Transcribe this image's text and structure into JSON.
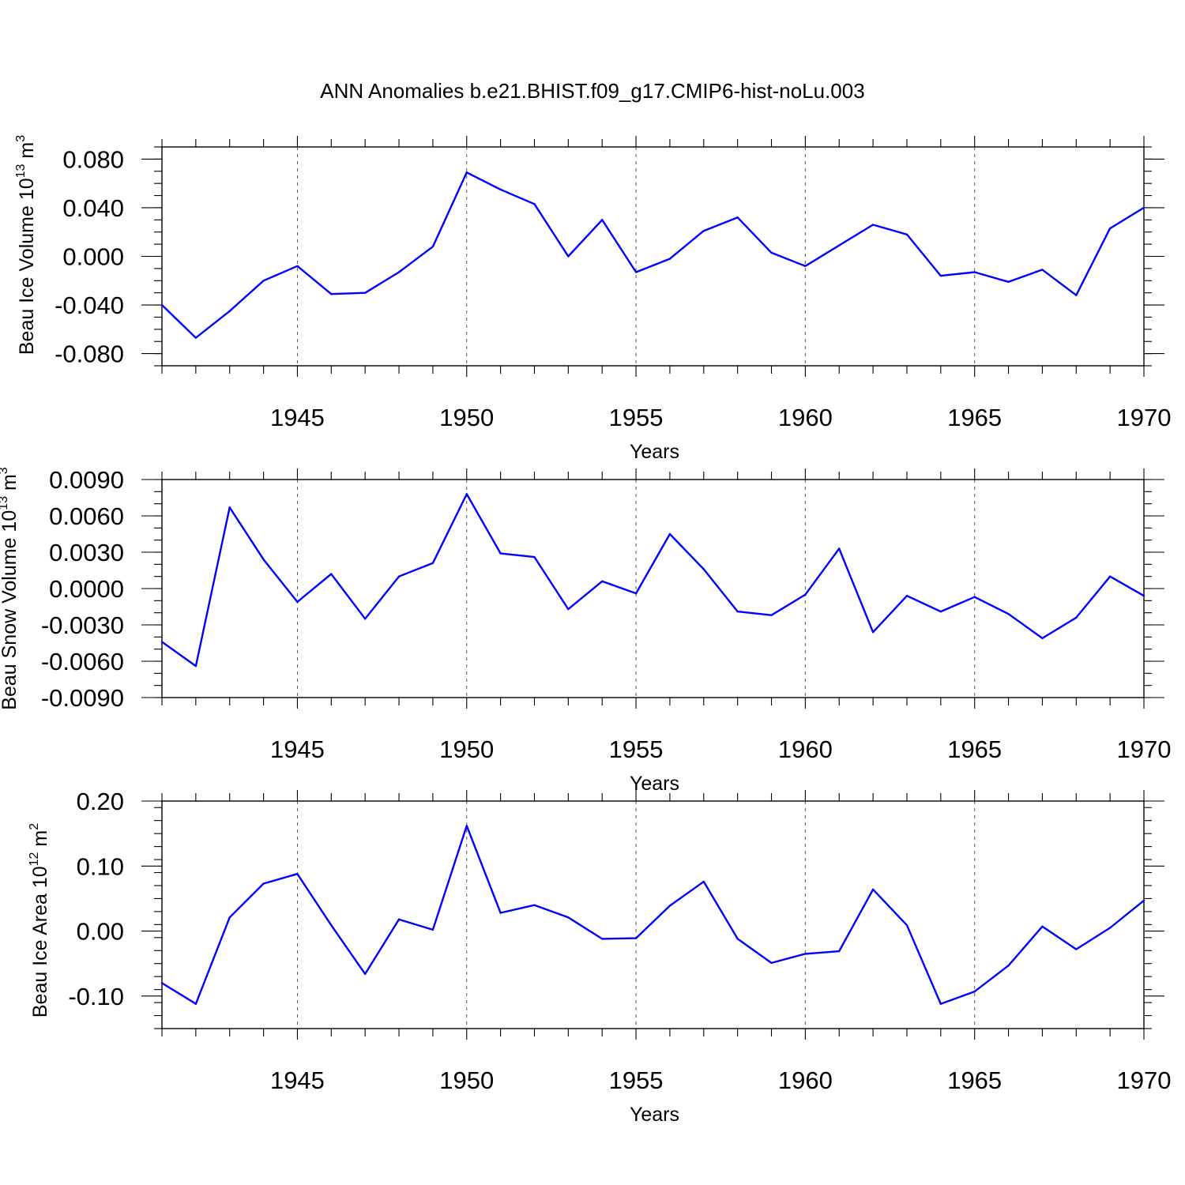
{
  "title": "ANN Anomalies b.e21.BHIST.f09_g17.CMIP6-hist-noLu.003",
  "colors": {
    "line": "#0000ff",
    "grid": "#555555",
    "axes": "#000000"
  },
  "chart_data": [
    {
      "type": "line",
      "ylabel": {
        "text": "Beau Ice Volume 10",
        "exp": "13",
        "unit": " m",
        "unit_exp": "3"
      },
      "xlabel": "Years",
      "xlim": [
        1941,
        1970
      ],
      "ylim": [
        -0.09,
        0.09
      ],
      "x_ticks": [
        1945,
        1950,
        1955,
        1960,
        1965,
        1970
      ],
      "x_tick_labels": [
        "1945",
        "1950",
        "1955",
        "1960",
        "1965",
        "1970"
      ],
      "y_ticks": [
        -0.08,
        -0.04,
        0.0,
        0.04,
        0.08
      ],
      "y_tick_labels": [
        "-0.080",
        "-0.040",
        "0.000",
        "0.040",
        "0.080"
      ],
      "y_minor_step": 0.01,
      "grid_x": [
        1945,
        1950,
        1955,
        1960,
        1965
      ],
      "x": [
        1941,
        1942,
        1943,
        1944,
        1945,
        1946,
        1947,
        1948,
        1949,
        1950,
        1951,
        1952,
        1953,
        1954,
        1955,
        1956,
        1957,
        1958,
        1959,
        1960,
        1961,
        1962,
        1963,
        1964,
        1965,
        1966,
        1967,
        1968,
        1969,
        1970
      ],
      "values": [
        -0.04,
        -0.067,
        -0.045,
        -0.02,
        -0.008,
        -0.031,
        -0.03,
        -0.013,
        0.008,
        0.069,
        0.055,
        0.043,
        0.0,
        0.03,
        -0.013,
        -0.002,
        0.021,
        0.032,
        0.003,
        -0.008,
        0.009,
        0.026,
        0.018,
        -0.016,
        -0.013,
        -0.021,
        -0.011,
        -0.032,
        0.023,
        0.04
      ]
    },
    {
      "type": "line",
      "ylabel": {
        "text": "Beau Snow Volume 10",
        "exp": "13",
        "unit": " m",
        "unit_exp": "3"
      },
      "xlabel": "Years",
      "xlim": [
        1941,
        1970
      ],
      "ylim": [
        -0.009,
        0.009
      ],
      "x_ticks": [
        1945,
        1950,
        1955,
        1960,
        1965,
        1970
      ],
      "x_tick_labels": [
        "1945",
        "1950",
        "1955",
        "1960",
        "1965",
        "1970"
      ],
      "y_ticks": [
        -0.009,
        -0.006,
        -0.003,
        0.0,
        0.003,
        0.006,
        0.009
      ],
      "y_tick_labels": [
        "-0.0090",
        "-0.0060",
        "-0.0030",
        "0.0000",
        "0.0030",
        "0.0060",
        "0.0090"
      ],
      "y_minor_step": 0.001,
      "grid_x": [
        1945,
        1950,
        1955,
        1960,
        1965
      ],
      "x": [
        1941,
        1942,
        1943,
        1944,
        1945,
        1946,
        1947,
        1948,
        1949,
        1950,
        1951,
        1952,
        1953,
        1954,
        1955,
        1956,
        1957,
        1958,
        1959,
        1960,
        1961,
        1962,
        1963,
        1964,
        1965,
        1966,
        1967,
        1968,
        1969,
        1970
      ],
      "values": [
        -0.0044,
        -0.0064,
        0.0067,
        0.0024,
        -0.0011,
        0.0012,
        -0.0025,
        0.001,
        0.0021,
        0.0078,
        0.0029,
        0.0026,
        -0.0017,
        0.0006,
        -0.0004,
        0.0045,
        0.0016,
        -0.0019,
        -0.0022,
        -0.0005,
        0.0033,
        -0.0036,
        -0.0006,
        -0.0019,
        -0.0007,
        -0.0021,
        -0.0041,
        -0.0024,
        0.001,
        -0.0006
      ]
    },
    {
      "type": "line",
      "ylabel": {
        "text": "Beau Ice Area 10",
        "exp": "12",
        "unit": " m",
        "unit_exp": "2"
      },
      "xlabel": "Years",
      "xlim": [
        1941,
        1970
      ],
      "ylim": [
        -0.15,
        0.2
      ],
      "x_ticks": [
        1945,
        1950,
        1955,
        1960,
        1965,
        1970
      ],
      "x_tick_labels": [
        "1945",
        "1950",
        "1955",
        "1960",
        "1965",
        "1970"
      ],
      "y_ticks": [
        -0.1,
        0.0,
        0.1,
        0.2
      ],
      "y_tick_labels": [
        "-0.10",
        "0.00",
        "0.10",
        "0.20"
      ],
      "y_minor_step": 0.02,
      "grid_x": [
        1945,
        1950,
        1955,
        1960,
        1965
      ],
      "x": [
        1941,
        1942,
        1943,
        1944,
        1945,
        1946,
        1947,
        1948,
        1949,
        1950,
        1951,
        1952,
        1953,
        1954,
        1955,
        1956,
        1957,
        1958,
        1959,
        1960,
        1961,
        1962,
        1963,
        1964,
        1965,
        1966,
        1967,
        1968,
        1969,
        1970
      ],
      "values": [
        -0.08,
        -0.112,
        0.021,
        0.073,
        0.088,
        0.009,
        -0.066,
        0.018,
        0.002,
        0.162,
        0.028,
        0.04,
        0.021,
        -0.012,
        -0.011,
        0.039,
        0.076,
        -0.012,
        -0.049,
        -0.035,
        -0.031,
        0.064,
        0.009,
        -0.112,
        -0.093,
        -0.053,
        0.007,
        -0.028,
        0.005,
        0.047
      ]
    }
  ]
}
